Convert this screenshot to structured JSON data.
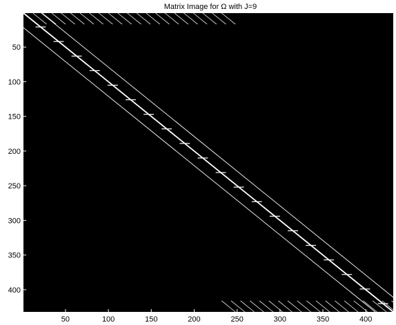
{
  "chart_data": {
    "type": "heatmap",
    "title": "Matrix Image for Ω with J=9",
    "xlabel": "",
    "ylabel": "",
    "xlim": [
      1,
      432
    ],
    "ylim": [
      1,
      432
    ],
    "y_reversed": true,
    "grid": false,
    "background_color": "#000000",
    "foreground_color": "#ffffff",
    "x_ticks": [
      50,
      100,
      150,
      200,
      250,
      300,
      350,
      400
    ],
    "y_ticks": [
      50,
      100,
      150,
      200,
      250,
      300,
      350,
      400
    ],
    "matrix_size": 432,
    "block_size": 21,
    "main_diagonal": {
      "from": [
        1,
        1
      ],
      "to": [
        432,
        432
      ]
    },
    "off_diagonals": [
      -21,
      21
    ],
    "block_ticks_at_multiples_of": 21,
    "corner_stripes": {
      "top_right": {
        "col_start": 1,
        "col_end": 232,
        "rows_near": 1
      },
      "bottom_left": {
        "col_start": 232,
        "col_end": 432,
        "rows_near": 432
      }
    }
  }
}
